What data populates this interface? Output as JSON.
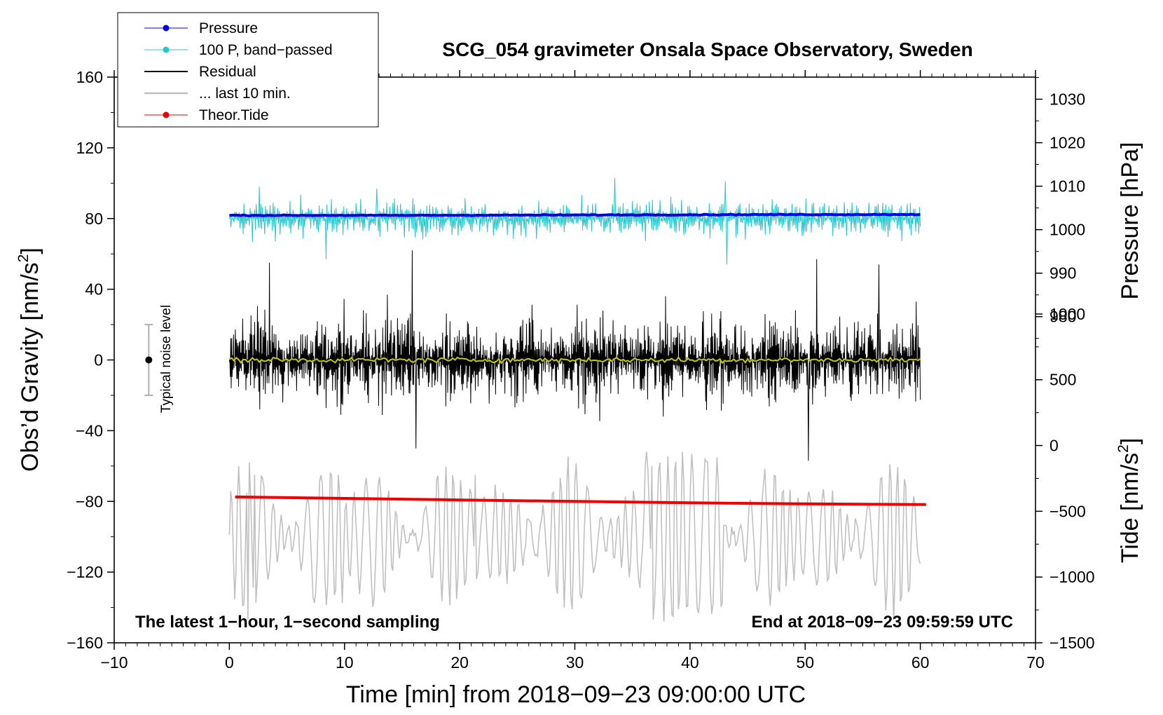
{
  "chart_data": {
    "type": "line",
    "title": "SCG_054 gravimeter Onsala Space Observatory, Sweden",
    "xlabel": "Time [min] from 2018−09−23 09:00:00 UTC",
    "ylabel_left": "Obs’d Gravity [nm/s",
    "ylabel_left_sup": "2",
    "ylabel_left_close": "]",
    "ylabel_right_top": "Pressure [hPa]",
    "ylabel_right_bottom": "Tide [nm/s",
    "ylabel_right_bottom_sup": "2",
    "ylabel_right_bottom_close": "]",
    "xlim": [
      -10,
      70
    ],
    "ylim_left": [
      -160,
      160
    ],
    "x_ticks": [
      -10,
      0,
      10,
      20,
      30,
      40,
      50,
      60,
      70
    ],
    "x_tick_labels": [
      "−10",
      "0",
      "10",
      "20",
      "30",
      "40",
      "50",
      "60",
      "70"
    ],
    "y_ticks_left": [
      -160,
      -120,
      -80,
      -40,
      0,
      40,
      80,
      120,
      160
    ],
    "y_tick_labels_left": [
      "−160",
      "−120",
      "−80",
      "−40",
      "0",
      "40",
      "80",
      "120",
      "160"
    ],
    "pressure_ticks": [
      980,
      990,
      1000,
      1010,
      1020,
      1030
    ],
    "pressure_tick_labels": [
      "980",
      "990",
      "1000",
      "1010",
      "1020",
      "1030"
    ],
    "pressure_axis_map": {
      "hpa": [
        980,
        1030
      ],
      "gravity": [
        24.5,
        147.5
      ]
    },
    "tide_ticks": [
      -1500,
      -1000,
      -500,
      0,
      500,
      1000
    ],
    "tide_tick_labels": [
      "−1500",
      "−1000",
      "−500",
      "0",
      "500",
      "1000"
    ],
    "tide_axis_map": {
      "tide": [
        -1500,
        1000
      ],
      "gravity": [
        -160,
        26
      ]
    },
    "legend": {
      "position": "top-left",
      "entries": [
        {
          "label": "Pressure",
          "color": "#0000ee",
          "marker": true
        },
        {
          "label": "100 P, band−passed",
          "color": "#22c8d0",
          "marker": true
        },
        {
          "label": "Residual",
          "color": "#000000",
          "marker": false
        },
        {
          "label": "... last 10 min.",
          "color": "#c0c0c0",
          "marker": false
        },
        {
          "label": "Theor.Tide",
          "color": "#ee0000",
          "marker": true
        }
      ]
    },
    "annotations": {
      "bottom_left": "The latest 1−hour, 1−second sampling",
      "bottom_right": "End at 2018−09−23 09:59:59 UTC",
      "noise_label": "Typical noise level",
      "noise_bar": {
        "x": -7,
        "center": 0,
        "half_range": 20
      }
    },
    "series": [
      {
        "name": "Pressure",
        "color": "#0000ee",
        "x_range": [
          0,
          60
        ],
        "values": [
          81.8,
          81.8,
          82.0,
          82.2,
          82.3
        ]
      },
      {
        "name": "100 P, band−passed",
        "color": "#22c8d0",
        "x_range": [
          0,
          60
        ],
        "center": 80,
        "amplitude": 12,
        "spikes": [
          [
            2.6,
            98
          ],
          [
            8.4,
            57
          ],
          [
            12.8,
            97
          ],
          [
            33.5,
            103
          ],
          [
            43.1,
            101
          ],
          [
            43.2,
            54
          ]
        ]
      },
      {
        "name": "Residual",
        "color": "#000000",
        "x_range": [
          0,
          60
        ],
        "center": 0,
        "amplitude": 38,
        "spikes": [
          [
            15.9,
            62
          ],
          [
            16.2,
            -50
          ],
          [
            50.3,
            -57
          ],
          [
            51.0,
            57
          ],
          [
            56.4,
            54
          ],
          [
            3.5,
            55
          ]
        ]
      },
      {
        "name": "Yellow smoothed",
        "color": "#c8c800",
        "x_range": [
          0,
          60
        ],
        "center": 0,
        "amplitude": 2
      },
      {
        "name": "... last 10 min.",
        "color": "#c0c0c0",
        "x_range": [
          0,
          60
        ],
        "center": -100,
        "amplitude": 45,
        "peaks": [
          [
            1.6,
            -147
          ],
          [
            2.2,
            -65
          ],
          [
            21.3,
            -65
          ],
          [
            36.7,
            -60
          ],
          [
            41.5,
            -58
          ],
          [
            38.5,
            -145
          ]
        ]
      },
      {
        "name": "Theor.Tide",
        "color": "#ee0000",
        "x": [
          0.5,
          10,
          20,
          30,
          40,
          50,
          60.5
        ],
        "values": [
          -77.5,
          -78.3,
          -79.2,
          -80.0,
          -80.8,
          -81.4,
          -81.8
        ]
      }
    ]
  }
}
